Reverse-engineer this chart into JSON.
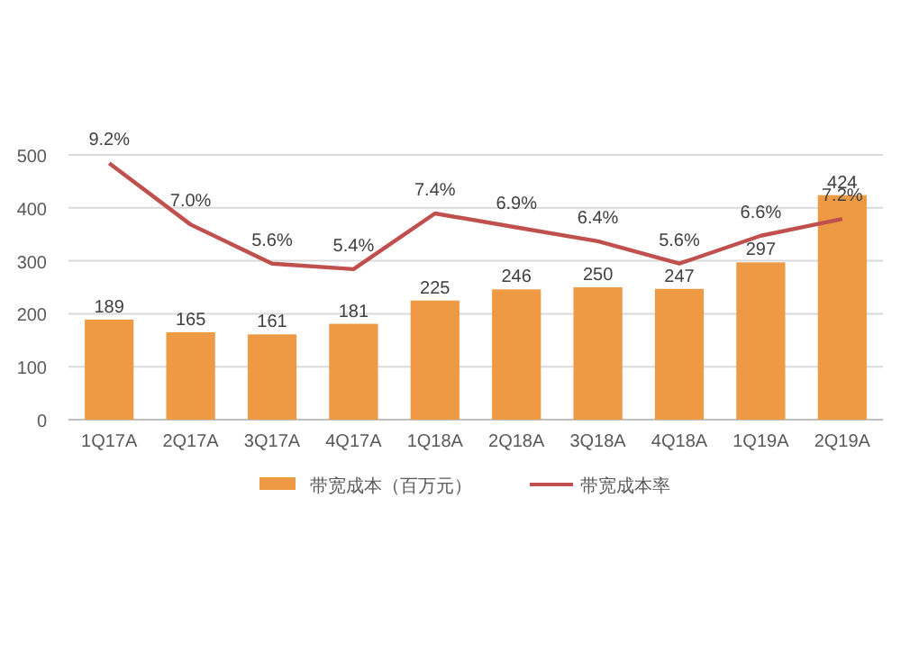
{
  "chart_data": {
    "type": "bar",
    "categories": [
      "1Q17A",
      "2Q17A",
      "3Q17A",
      "4Q17A",
      "1Q18A",
      "2Q18A",
      "3Q18A",
      "4Q18A",
      "1Q19A",
      "2Q19A"
    ],
    "series": [
      {
        "name": "带宽成本（百万元）",
        "color": "#ee9a45",
        "values": [
          189,
          165,
          161,
          181,
          225,
          246,
          250,
          247,
          297,
          424
        ],
        "value_labels": [
          "189",
          "165",
          "161",
          "181",
          "225",
          "246",
          "250",
          "247",
          "297",
          "424"
        ]
      },
      {
        "name": "带宽成本率",
        "type": "line",
        "axis": "y2",
        "color": "#c0504d",
        "values": [
          9.2,
          7.0,
          5.6,
          5.4,
          7.4,
          6.9,
          6.4,
          5.6,
          6.6,
          7.2
        ],
        "value_labels": [
          "9.2%",
          "7.0%",
          "5.6%",
          "5.4%",
          "7.4%",
          "6.9%",
          "6.4%",
          "5.6%",
          "6.6%",
          "7.2%"
        ]
      }
    ],
    "ylim": [
      0,
      500
    ],
    "yticks": [
      0,
      100,
      200,
      300,
      400,
      500
    ],
    "y2lim": [
      0,
      9.5
    ],
    "grid": "y",
    "legend": "bottom",
    "marker": "none"
  }
}
